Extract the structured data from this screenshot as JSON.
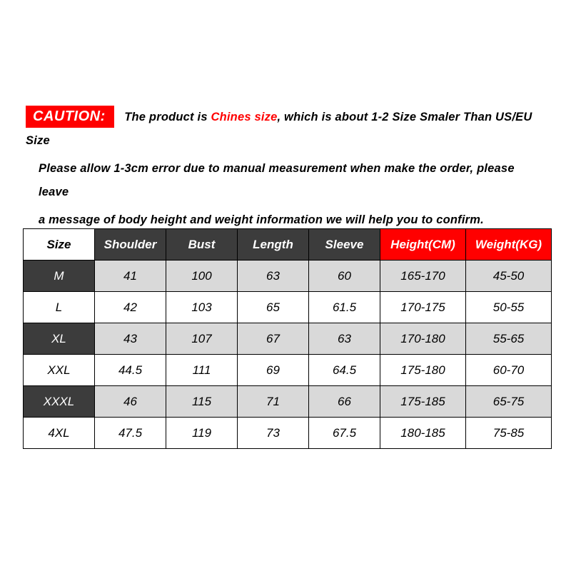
{
  "caution": {
    "badge": "CAUTION:",
    "badge_bg": "#ff0000",
    "badge_fg": "#ffffff",
    "line1_prefix": "The product is ",
    "line1_highlight": "Chines size",
    "line1_suffix": ", which is about 1-2 Size Smaler Than US/EU Size",
    "highlight_color": "#ff0000",
    "line2": "Please allow 1-3cm error due to manual measurement when make the order, please leave",
    "line3": "a message of body height and weight information we will help you to confirm.",
    "text_color": "#000000",
    "font_style": "italic",
    "font_weight": 900
  },
  "table": {
    "type": "table",
    "border_color": "#000000",
    "header_dark_bg": "#3c3c3c",
    "header_dark_fg": "#ffffff",
    "header_red_bg": "#ff0000",
    "header_red_fg": "#ffffff",
    "header_white_bg": "#ffffff",
    "header_white_fg": "#000000",
    "row_alt_bg": "#d9d9d9",
    "row_bg": "#ffffff",
    "cell_fg": "#000000",
    "columns": {
      "size": "Size",
      "shoulder": "Shoulder",
      "bust": "Bust",
      "length": "Length",
      "sleeve": "Sleeve",
      "height": "Height(CM)",
      "weight": "Weight(KG)"
    },
    "rows": [
      {
        "size": "M",
        "shoulder": "41",
        "bust": "100",
        "length": "63",
        "sleeve": "60",
        "height": "165-170",
        "weight": "45-50",
        "label_style": "dark"
      },
      {
        "size": "L",
        "shoulder": "42",
        "bust": "103",
        "length": "65",
        "sleeve": "61.5",
        "height": "170-175",
        "weight": "50-55",
        "label_style": "white"
      },
      {
        "size": "XL",
        "shoulder": "43",
        "bust": "107",
        "length": "67",
        "sleeve": "63",
        "height": "170-180",
        "weight": "55-65",
        "label_style": "dark"
      },
      {
        "size": "XXL",
        "shoulder": "44.5",
        "bust": "111",
        "length": "69",
        "sleeve": "64.5",
        "height": "175-180",
        "weight": "60-70",
        "label_style": "white"
      },
      {
        "size": "XXXL",
        "shoulder": "46",
        "bust": "115",
        "length": "71",
        "sleeve": "66",
        "height": "175-185",
        "weight": "65-75",
        "label_style": "dark"
      },
      {
        "size": "4XL",
        "shoulder": "47.5",
        "bust": "119",
        "length": "73",
        "sleeve": "67.5",
        "height": "180-185",
        "weight": "75-85",
        "label_style": "white"
      }
    ]
  }
}
